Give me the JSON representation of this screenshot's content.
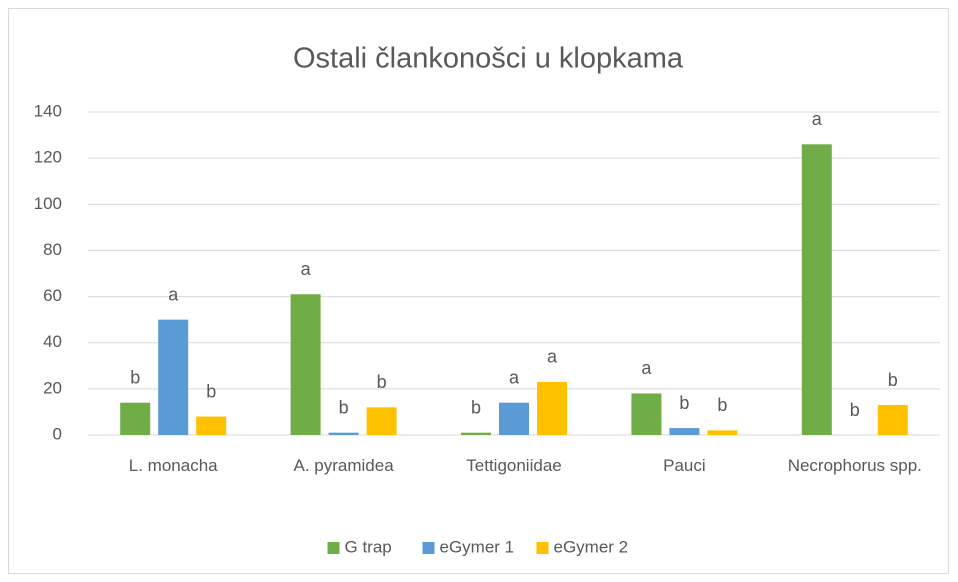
{
  "chart_data": {
    "type": "bar",
    "title": "Ostali člankonošci u klopkama",
    "categories": [
      "L. monacha",
      "A. pyramidea",
      "Tettigoniidae",
      "Pauci",
      "Necrophorus spp."
    ],
    "series": [
      {
        "name": "G trap",
        "color": "#70ad47",
        "values": [
          14,
          61,
          1,
          18,
          126
        ],
        "annotations": [
          "b",
          "a",
          "b",
          "a",
          "a"
        ]
      },
      {
        "name": "eGymer 1",
        "color": "#5b9bd5",
        "values": [
          50,
          1,
          14,
          3,
          0
        ],
        "annotations": [
          "a",
          "b",
          "a",
          "b",
          "b"
        ]
      },
      {
        "name": "eGymer 2",
        "color": "#ffc000",
        "values": [
          8,
          12,
          23,
          2,
          13
        ],
        "annotations": [
          "b",
          "b",
          "a",
          "b",
          "b"
        ]
      }
    ],
    "ylim": [
      0,
      140
    ],
    "yticks": [
      0,
      20,
      40,
      60,
      80,
      100,
      120,
      140
    ],
    "grid": true,
    "legend": "bottom"
  }
}
